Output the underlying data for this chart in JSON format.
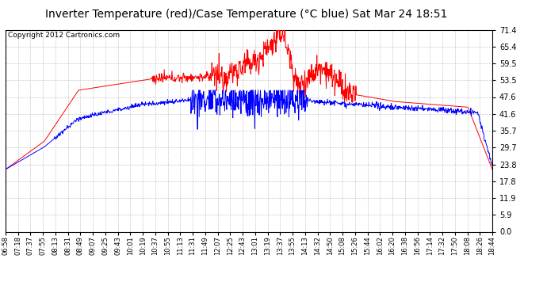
{
  "title": "Inverter Temperature (red)/Case Temperature (°C blue) Sat Mar 24 18:51",
  "copyright": "Copyright 2012 Cartronics.com",
  "ylim": [
    0.0,
    71.4
  ],
  "yticks": [
    0.0,
    5.9,
    11.9,
    17.8,
    23.8,
    29.7,
    35.7,
    41.6,
    47.6,
    53.5,
    59.5,
    65.4,
    71.4
  ],
  "xtick_labels": [
    "06:58",
    "07:18",
    "07:37",
    "07:55",
    "08:13",
    "08:31",
    "08:49",
    "09:07",
    "09:25",
    "09:43",
    "10:01",
    "10:19",
    "10:37",
    "10:55",
    "11:13",
    "11:31",
    "11:49",
    "12:07",
    "12:25",
    "12:43",
    "13:01",
    "13:19",
    "13:37",
    "13:55",
    "14:13",
    "14:32",
    "14:50",
    "15:08",
    "15:26",
    "15:44",
    "16:02",
    "16:20",
    "16:38",
    "16:56",
    "17:14",
    "17:32",
    "17:50",
    "18:08",
    "18:26",
    "18:44"
  ],
  "background_color": "#ffffff",
  "grid_color": "#bbbbbb",
  "red_line_color": "#ff0000",
  "blue_line_color": "#0000ff",
  "title_fontsize": 10,
  "copyright_fontsize": 6.5
}
